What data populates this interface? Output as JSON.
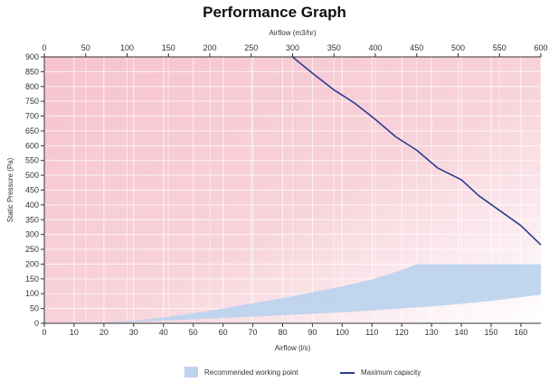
{
  "chart_data": {
    "type": "area",
    "title": "Performance Graph",
    "x_top": {
      "label": "Airflow (m3/hr)",
      "range": [
        0,
        600
      ],
      "ticks": [
        0,
        50,
        100,
        150,
        200,
        250,
        300,
        350,
        400,
        450,
        500,
        550,
        600
      ]
    },
    "x_bottom": {
      "label": "Airflow (l/s)",
      "range": [
        0,
        166.7
      ],
      "ticks": [
        0,
        10,
        20,
        30,
        40,
        50,
        60,
        70,
        80,
        90,
        100,
        110,
        120,
        130,
        140,
        150,
        160
      ]
    },
    "y": {
      "label": "Static Pressure (Pa)",
      "range": [
        0,
        900
      ],
      "ticks": [
        0,
        50,
        100,
        150,
        200,
        250,
        300,
        350,
        400,
        450,
        500,
        550,
        600,
        650,
        700,
        750,
        800,
        850,
        900
      ]
    },
    "grid": true,
    "legend_position": "bottom",
    "series": [
      {
        "name": "Maximum capacity",
        "kind": "line",
        "color": "#2a3d8f",
        "points": [
          [
            83.3,
            900
          ],
          [
            90,
            845
          ],
          [
            97,
            790
          ],
          [
            104,
            745
          ],
          [
            111,
            690
          ],
          [
            118,
            630
          ],
          [
            125,
            585
          ],
          [
            132,
            525
          ],
          [
            140,
            485
          ],
          [
            146,
            430
          ],
          [
            153,
            380
          ],
          [
            160,
            330
          ],
          [
            166.7,
            265
          ]
        ]
      },
      {
        "name": "Recommended working point",
        "kind": "band",
        "color": "#bcd3ee",
        "upper": [
          [
            20,
            2
          ],
          [
            30,
            9
          ],
          [
            40,
            20
          ],
          [
            50,
            34
          ],
          [
            60,
            50
          ],
          [
            70,
            68
          ],
          [
            80,
            85
          ],
          [
            90,
            105
          ],
          [
            100,
            125
          ],
          [
            110,
            148
          ],
          [
            120,
            180
          ],
          [
            125,
            200
          ],
          [
            166.7,
            200
          ]
        ],
        "lower": [
          [
            20,
            0
          ],
          [
            40,
            9
          ],
          [
            60,
            18
          ],
          [
            80,
            27
          ],
          [
            100,
            37
          ],
          [
            120,
            50
          ],
          [
            130,
            57
          ],
          [
            140,
            66
          ],
          [
            150,
            76
          ],
          [
            160,
            88
          ],
          [
            166.7,
            97
          ]
        ]
      }
    ],
    "background_zone_color": "#f5c8d2"
  }
}
